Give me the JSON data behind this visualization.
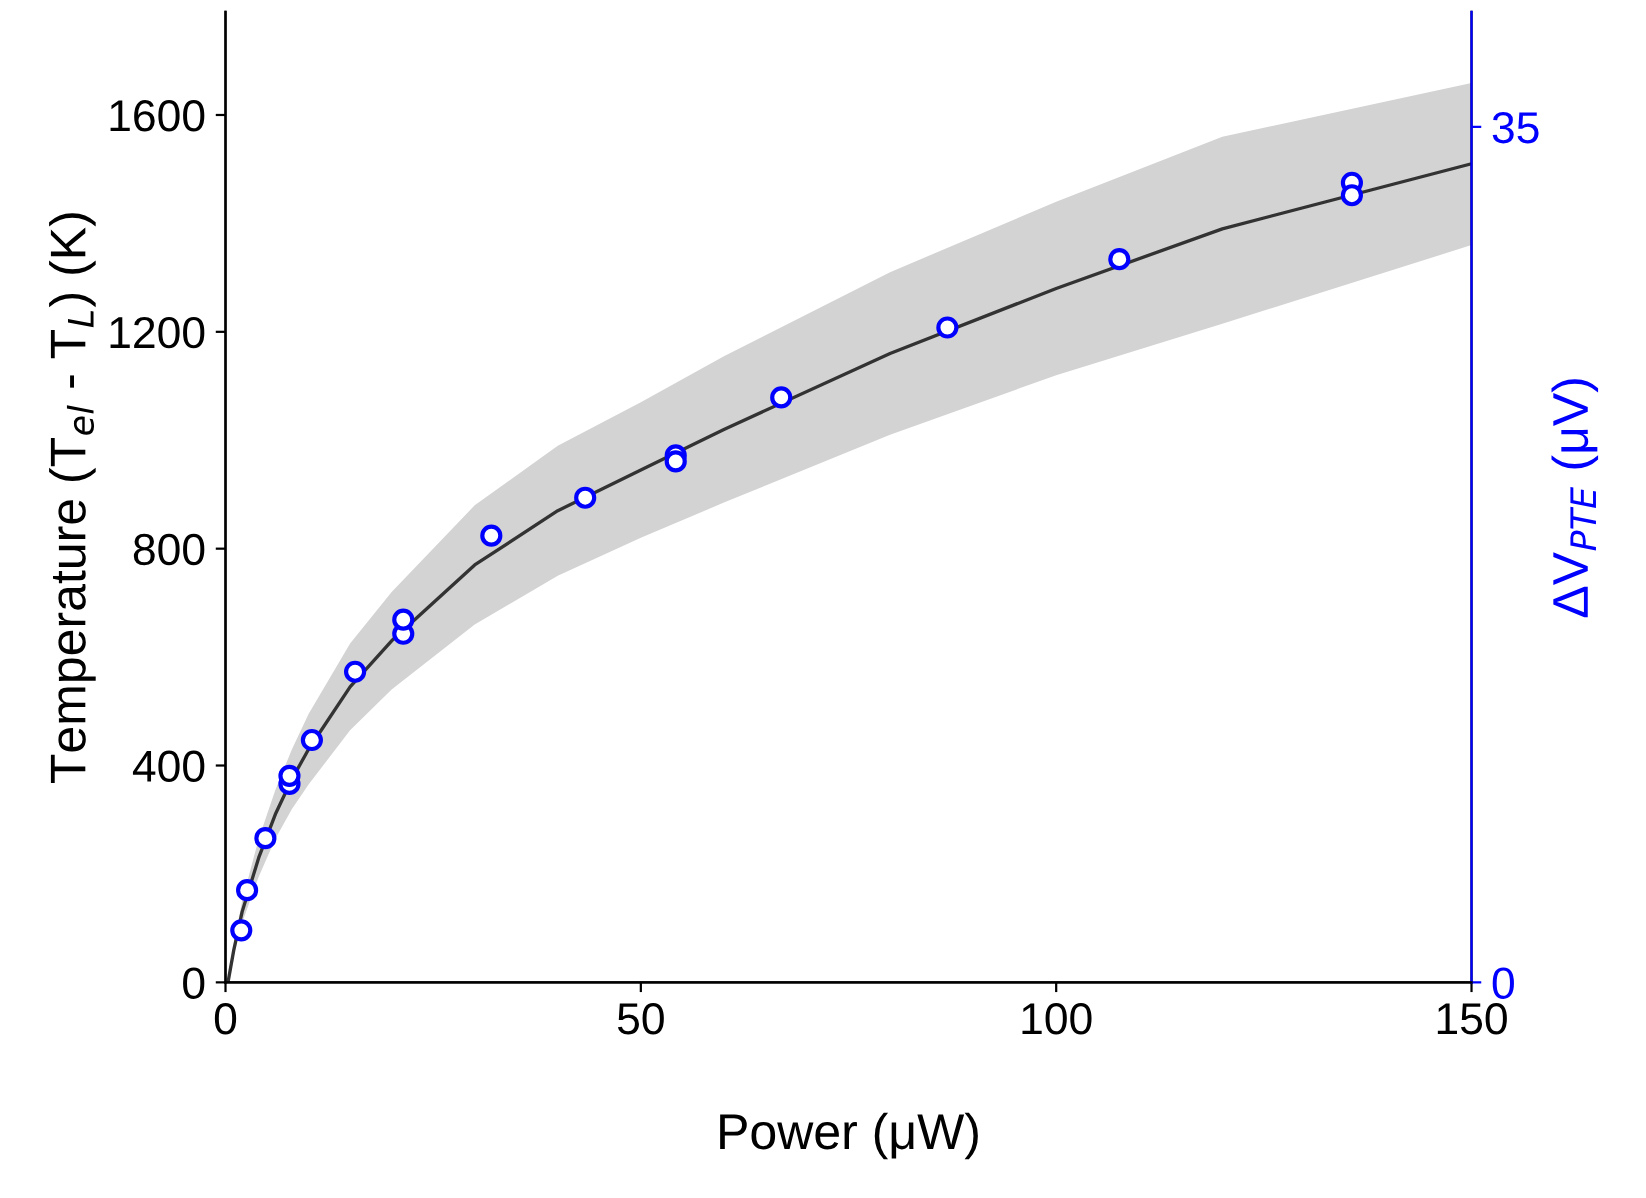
{
  "chart_data": {
    "type": "scatter",
    "xlabel": "Power (μW)",
    "ylabel": "Temperature (T$_{el}$ - T$_{L}$) (K)",
    "y2label": "ΔV$_{PTE}$ (μV)",
    "xlim": [
      0,
      150
    ],
    "xticks": [
      0,
      50,
      100,
      150
    ],
    "ylim": [
      0,
      1790
    ],
    "yticks": [
      0,
      400,
      800,
      1200,
      1600
    ],
    "y2lim": [
      0,
      39.7
    ],
    "y2ticks": [
      0,
      35
    ],
    "grid": false,
    "legend": false,
    "series": [
      {
        "type": "line",
        "color": "#333333",
        "marker": "none",
        "x": [
          0.3,
          1,
          2,
          4,
          6,
          8,
          10,
          15,
          20,
          30,
          40,
          50,
          60,
          80,
          100,
          120,
          150
        ],
        "values": [
          0,
          60,
          130,
          230,
          310,
          375,
          430,
          545,
          630,
          770,
          870,
          945,
          1020,
          1160,
          1280,
          1390,
          1510
        ],
        "lower": [
          0,
          50,
          110,
          195,
          265,
          320,
          365,
          465,
          540,
          660,
          750,
          820,
          885,
          1010,
          1120,
          1215,
          1360
        ],
        "upper": [
          0,
          70,
          150,
          265,
          355,
          430,
          495,
          625,
          720,
          880,
          990,
          1070,
          1155,
          1310,
          1440,
          1560,
          1659
        ]
      },
      {
        "color": "#0000ff",
        "marker": "circle",
        "x": [
          1.9,
          2.6,
          4.8,
          7.7,
          7.7,
          10.4,
          15.6,
          21.4,
          21.4,
          32.0,
          43.3,
          54.2,
          54.2,
          66.9,
          86.9,
          107.6,
          135.6,
          135.6
        ],
        "values": [
          96,
          170,
          266,
          366,
          381,
          447,
          573,
          643,
          669,
          824,
          894,
          972,
          961,
          1079,
          1208,
          1334,
          1475,
          1452
        ]
      }
    ]
  }
}
